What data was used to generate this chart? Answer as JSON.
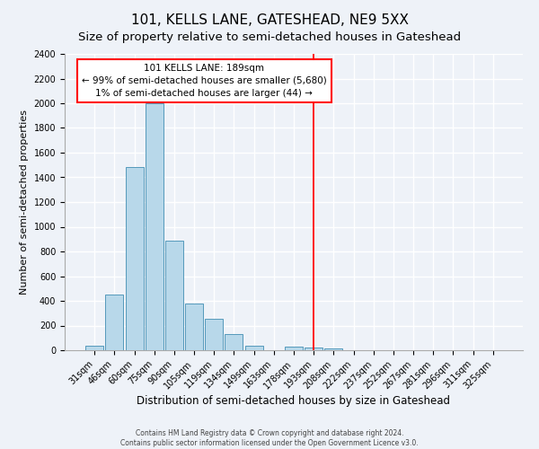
{
  "title": "101, KELLS LANE, GATESHEAD, NE9 5XX",
  "subtitle": "Size of property relative to semi-detached houses in Gateshead",
  "bar_labels": [
    "31sqm",
    "46sqm",
    "60sqm",
    "75sqm",
    "90sqm",
    "105sqm",
    "119sqm",
    "134sqm",
    "149sqm",
    "163sqm",
    "178sqm",
    "193sqm",
    "208sqm",
    "222sqm",
    "237sqm",
    "252sqm",
    "267sqm",
    "281sqm",
    "296sqm",
    "311sqm",
    "325sqm"
  ],
  "bar_values": [
    40,
    450,
    1480,
    2000,
    890,
    375,
    255,
    130,
    40,
    0,
    30,
    20,
    15,
    0,
    0,
    0,
    0,
    0,
    0,
    0,
    0
  ],
  "bar_color": "#b8d8ea",
  "bar_edge_color": "#5599bb",
  "xlabel": "Distribution of semi-detached houses by size in Gateshead",
  "ylabel": "Number of semi-detached properties",
  "ylim": [
    0,
    2400
  ],
  "yticks": [
    0,
    200,
    400,
    600,
    800,
    1000,
    1200,
    1400,
    1600,
    1800,
    2000,
    2200,
    2400
  ],
  "vline_index": 11,
  "vline_color": "red",
  "annotation_title": "101 KELLS LANE: 189sqm",
  "annotation_line1": "← 99% of semi-detached houses are smaller (5,680)",
  "annotation_line2": "1% of semi-detached houses are larger (44) →",
  "footer1": "Contains HM Land Registry data © Crown copyright and database right 2024.",
  "footer2": "Contains public sector information licensed under the Open Government Licence v3.0.",
  "bg_color": "#eef2f8",
  "grid_color": "white",
  "title_fontsize": 11,
  "subtitle_fontsize": 9.5,
  "xlabel_fontsize": 8.5,
  "ylabel_fontsize": 8,
  "tick_fontsize": 7,
  "annotation_fontsize": 7.5,
  "footer_fontsize": 5.5
}
